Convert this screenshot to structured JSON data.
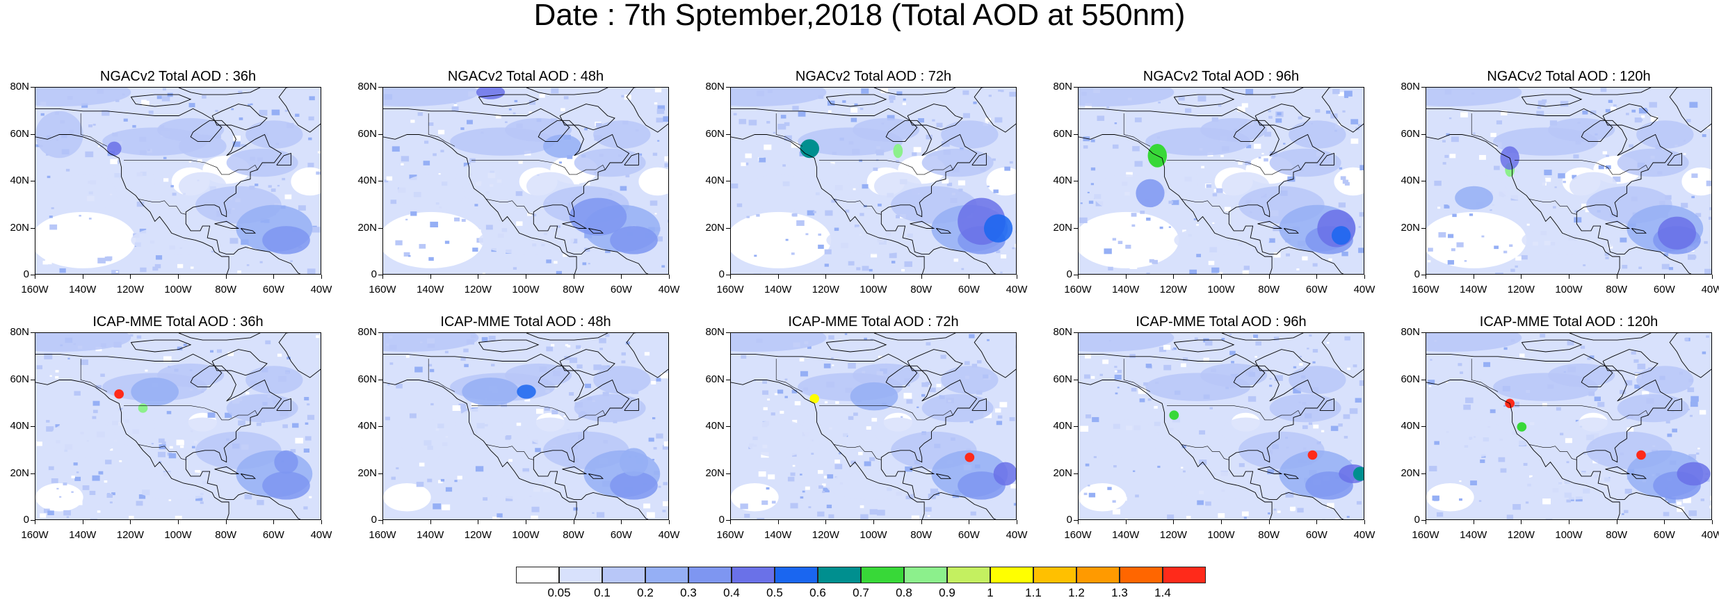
{
  "title": "Date : 7th Sptember,2018 (Total AOD at 550nm)",
  "chart_data": {
    "type": "heatmap",
    "title": "Date : 7th Sptember,2018 (Total AOD at 550nm)",
    "variable": "Total AOD at 550nm",
    "date": "7th Sptember,2018",
    "grid": false,
    "legend_placement": "bottom-center",
    "x_axis": {
      "range": [
        -160,
        -40
      ],
      "ticks": [
        "160W",
        "140W",
        "120W",
        "100W",
        "80W",
        "60W",
        "40W"
      ]
    },
    "y_axis": {
      "range": [
        0,
        80
      ],
      "ticks": [
        "0",
        "20N",
        "40N",
        "60N",
        "80N"
      ]
    },
    "colorbar": {
      "boundaries": [
        "0.05",
        "0.1",
        "0.2",
        "0.3",
        "0.4",
        "0.5",
        "0.6",
        "0.7",
        "0.8",
        "0.9",
        "1",
        "1.1",
        "1.2",
        "1.3",
        "1.4"
      ],
      "colors": [
        "#ffffff",
        "#d8e1fc",
        "#b8c7f8",
        "#95aff5",
        "#7e96f1",
        "#6a71e8",
        "#1a66f0",
        "#008f8f",
        "#38d838",
        "#8cf08c",
        "#c4f060",
        "#ffff00",
        "#ffc000",
        "#ff9a00",
        "#ff6600",
        "#ff2a1a"
      ]
    },
    "panels": [
      {
        "model": "NGACv2",
        "title": "NGACv2 Total AOD : 36h",
        "lead": "36h"
      },
      {
        "model": "NGACv2",
        "title": "NGACv2 Total AOD : 48h",
        "lead": "48h"
      },
      {
        "model": "NGACv2",
        "title": "NGACv2 Total AOD : 72h",
        "lead": "72h"
      },
      {
        "model": "NGACv2",
        "title": "NGACv2 Total AOD : 96h",
        "lead": "96h"
      },
      {
        "model": "NGACv2",
        "title": "NGACv2 Total AOD : 120h",
        "lead": "120h"
      },
      {
        "model": "ICAP-MME",
        "title": "ICAP-MME Total AOD : 36h",
        "lead": "36h"
      },
      {
        "model": "ICAP-MME",
        "title": "ICAP-MME Total AOD : 48h",
        "lead": "48h"
      },
      {
        "model": "ICAP-MME",
        "title": "ICAP-MME Total AOD : 72h",
        "lead": "72h"
      },
      {
        "model": "ICAP-MME",
        "title": "ICAP-MME Total AOD : 96h",
        "lead": "96h"
      },
      {
        "model": "ICAP-MME",
        "title": "ICAP-MME Total AOD : 120h",
        "lead": "120h"
      }
    ]
  }
}
